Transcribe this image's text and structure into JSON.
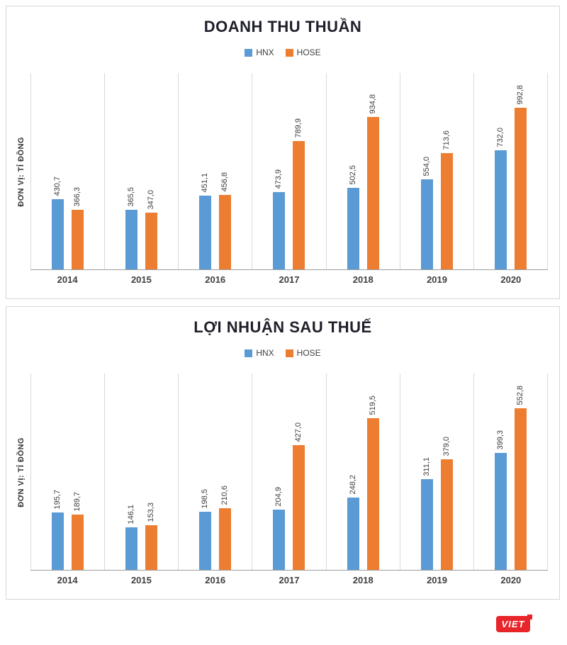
{
  "chart_data": [
    {
      "type": "bar",
      "title": "DOANH THU THUẦN",
      "ylabel": "ĐƠN VỊ: TỈ ĐỒNG",
      "xlabel": "",
      "legend_position": "top",
      "grid": "vertical-category-separators",
      "categories": [
        "2014",
        "2015",
        "2016",
        "2017",
        "2018",
        "2019",
        "2020"
      ],
      "series": [
        {
          "name": "HNX",
          "color": "#5B9BD5",
          "values": [
            430.7,
            365.5,
            451.1,
            473.9,
            502.5,
            554.0,
            732.0
          ],
          "value_labels": [
            "430,7",
            "365,5",
            "451,1",
            "473,9",
            "502,5",
            "554,0",
            "732,0"
          ]
        },
        {
          "name": "HOSE",
          "color": "#ED7D31",
          "values": [
            366.3,
            347.0,
            456.8,
            789.9,
            934.8,
            713.6,
            992.8
          ],
          "value_labels": [
            "366,3",
            "347,0",
            "456,8",
            "789,9",
            "934,8",
            "713,6",
            "992,8"
          ]
        }
      ]
    },
    {
      "type": "bar",
      "title": "LỢI NHUẬN SAU THUẾ",
      "ylabel": "ĐƠN VỊ: TỈ ĐỒNG",
      "xlabel": "",
      "legend_position": "top",
      "grid": "vertical-category-separators",
      "categories": [
        "2014",
        "2015",
        "2016",
        "2017",
        "2018",
        "2019",
        "2020"
      ],
      "series": [
        {
          "name": "HNX",
          "color": "#5B9BD5",
          "values": [
            195.7,
            146.1,
            198.5,
            204.9,
            248.2,
            311.1,
            399.3
          ],
          "value_labels": [
            "195,7",
            "146,1",
            "198,5",
            "204,9",
            "248,2",
            "311,1",
            "399,3"
          ]
        },
        {
          "name": "HOSE",
          "color": "#ED7D31",
          "values": [
            189.7,
            153.3,
            210.6,
            427.0,
            519.5,
            379.0,
            552.8
          ],
          "value_labels": [
            "189,7",
            "153,3",
            "210,6",
            "427,0",
            "519,5",
            "379,0",
            "552,8"
          ]
        }
      ]
    }
  ],
  "logo": {
    "text": "VIET"
  }
}
